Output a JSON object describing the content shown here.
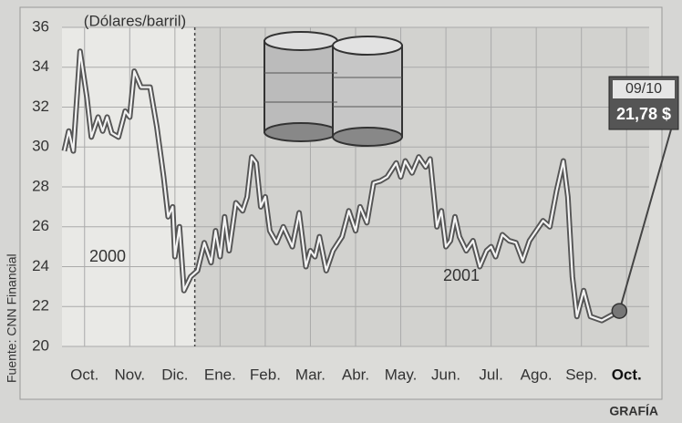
{
  "chart_data": {
    "type": "line",
    "unit_label": "(Dólares/barril)",
    "source": "Fuente: CNN Financial",
    "credit": "GRAFÍA",
    "annotations": [
      "2000",
      "2001"
    ],
    "callout": {
      "date": "09/10",
      "label": "21,78 $"
    },
    "x": [
      -0.45,
      -0.35,
      -0.25,
      -0.1,
      0.05,
      0.15,
      0.3,
      0.4,
      0.5,
      0.6,
      0.75,
      0.9,
      1.0,
      1.1,
      1.25,
      1.45,
      1.6,
      1.75,
      1.85,
      1.95,
      2.0,
      2.1,
      2.2,
      2.35,
      2.5,
      2.65,
      2.8,
      2.9,
      3.0,
      3.1,
      3.2,
      3.35,
      3.5,
      3.6,
      3.7,
      3.8,
      3.9,
      4.0,
      4.1,
      4.25,
      4.4,
      4.6,
      4.75,
      4.9,
      5.0,
      5.1,
      5.2,
      5.35,
      5.5,
      5.7,
      5.85,
      6.0,
      6.1,
      6.25,
      6.4,
      6.55,
      6.7,
      6.9,
      7.0,
      7.1,
      7.25,
      7.4,
      7.55,
      7.65,
      7.8,
      7.9,
      8.0,
      8.1,
      8.2,
      8.3,
      8.45,
      8.6,
      8.75,
      8.9,
      9.0,
      9.1,
      9.25,
      9.4,
      9.55,
      9.7,
      9.85,
      10.0,
      10.15,
      10.3,
      10.45,
      10.6,
      10.7,
      10.8,
      10.9,
      11.05,
      11.2,
      11.45,
      11.84
    ],
    "series": [
      {
        "color": "#555555",
        "values": [
          29.8,
          30.8,
          29.8,
          34.8,
          32.5,
          30.5,
          31.5,
          30.8,
          31.5,
          30.7,
          30.5,
          31.8,
          31.5,
          33.8,
          33.0,
          33.0,
          31.0,
          28.5,
          26.5,
          27.0,
          24.5,
          26.0,
          22.8,
          23.5,
          23.8,
          25.2,
          24.2,
          25.8,
          24.5,
          26.5,
          24.8,
          27.2,
          26.8,
          27.5,
          29.5,
          29.2,
          27.0,
          27.5,
          25.8,
          25.2,
          26.0,
          25.0,
          26.7,
          24.0,
          24.8,
          24.5,
          25.5,
          23.8,
          24.8,
          25.5,
          26.8,
          25.8,
          27.0,
          26.2,
          28.2,
          28.3,
          28.5,
          29.2,
          28.5,
          29.3,
          28.7,
          29.5,
          29.0,
          29.4,
          26.0,
          26.8,
          25.0,
          25.3,
          26.5,
          25.5,
          24.8,
          25.3,
          24.0,
          24.8,
          25.0,
          24.5,
          25.6,
          25.3,
          25.2,
          24.3,
          25.3,
          25.8,
          26.3,
          26.0,
          27.8,
          29.3,
          27.5,
          23.5,
          21.5,
          22.8,
          21.5,
          21.3,
          21.78
        ]
      }
    ],
    "xlim": [
      -0.5,
      12.5
    ],
    "xticks": [
      {
        "value": 0,
        "label": "Oct."
      },
      {
        "value": 1,
        "label": "Nov."
      },
      {
        "value": 2,
        "label": "Dic."
      },
      {
        "value": 3,
        "label": "Ene."
      },
      {
        "value": 4,
        "label": "Feb."
      },
      {
        "value": 5,
        "label": "Mar."
      },
      {
        "value": 6,
        "label": "Abr."
      },
      {
        "value": 7,
        "label": "May."
      },
      {
        "value": 8,
        "label": "Jun."
      },
      {
        "value": 9,
        "label": "Jul."
      },
      {
        "value": 10,
        "label": "Ago."
      },
      {
        "value": 11,
        "label": "Sep."
      },
      {
        "value": 12,
        "label": "Oct."
      }
    ],
    "ylim": [
      20,
      36
    ],
    "yticks": [
      20,
      22,
      24,
      26,
      28,
      30,
      32,
      34,
      36
    ],
    "year_divider": 2.44,
    "grid": true
  }
}
